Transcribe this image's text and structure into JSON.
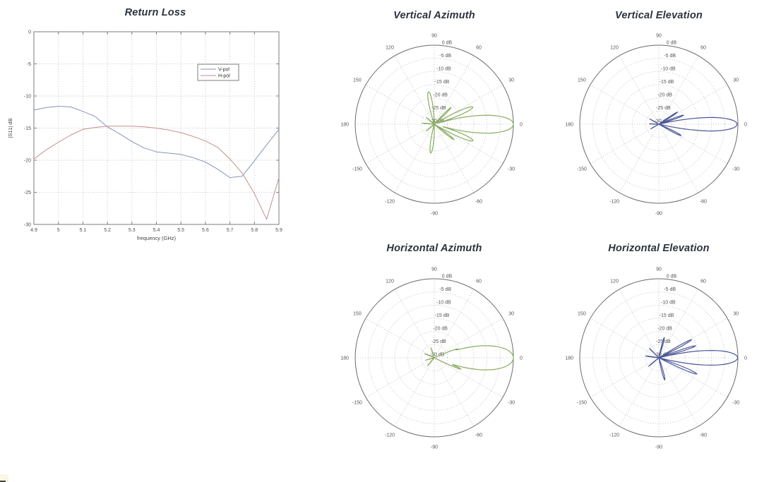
{
  "page": {
    "background": "#ffffff"
  },
  "corner_artifact": {
    "color": "#faf6e2",
    "mark_color": "#45453b"
  },
  "chart_data": [
    {
      "type": "line",
      "id": "return-loss",
      "title": "Return Loss",
      "xlabel": "frequency (GHz)",
      "ylabel": "|S11| dB",
      "xlim": [
        4.9,
        5.9
      ],
      "ylim": [
        -30,
        0
      ],
      "x_ticks": [
        "4.9",
        "5",
        "5.1",
        "5.2",
        "5.3",
        "5.4",
        "5.5",
        "5.6",
        "5.7",
        "5.8",
        "5.9"
      ],
      "y_ticks": [
        "0",
        "-5",
        "-10",
        "-15",
        "-20",
        "-25",
        "-30"
      ],
      "grid": true,
      "legend_position": "upper-right-inside",
      "series": [
        {
          "name": "V-pol",
          "color": "#8593b8",
          "x": [
            4.9,
            4.95,
            5.0,
            5.05,
            5.1,
            5.15,
            5.2,
            5.25,
            5.3,
            5.35,
            5.4,
            5.45,
            5.5,
            5.55,
            5.6,
            5.65,
            5.7,
            5.75,
            5.8,
            5.85,
            5.9
          ],
          "y": [
            -12.2,
            -11.8,
            -11.6,
            -11.7,
            -12.4,
            -13.2,
            -14.8,
            -15.9,
            -17.1,
            -18.1,
            -18.7,
            -18.9,
            -19.1,
            -19.6,
            -20.3,
            -21.4,
            -22.7,
            -22.5,
            -20.1,
            -17.6,
            -15.2
          ]
        },
        {
          "name": "H-pol",
          "color": "#c28f8f",
          "x": [
            4.9,
            4.95,
            5.0,
            5.05,
            5.1,
            5.15,
            5.2,
            5.25,
            5.3,
            5.35,
            5.4,
            5.45,
            5.5,
            5.55,
            5.6,
            5.65,
            5.7,
            5.75,
            5.8,
            5.85,
            5.9
          ],
          "y": [
            -19.8,
            -18.4,
            -17.2,
            -16.1,
            -15.2,
            -14.9,
            -14.7,
            -14.7,
            -14.7,
            -14.8,
            -15.0,
            -15.3,
            -15.7,
            -16.3,
            -17.0,
            -18.0,
            -19.8,
            -22.0,
            -25.2,
            -29.2,
            -22.7
          ]
        }
      ]
    },
    {
      "type": "polar",
      "id": "vertical-azimuth",
      "title": "Vertical Azimuth",
      "color": "#89ac60",
      "rlim": [
        -30,
        0
      ],
      "ring_labels": [
        "0 dB",
        "-5 dB",
        "-10 dB",
        "-15 dB",
        "-20 dB",
        "-25 dB",
        "-30 dB"
      ],
      "angle_ticks": [
        "90",
        "60",
        "30",
        "0",
        "-30",
        "-60",
        "-90",
        "-120",
        "-150",
        "180",
        "150",
        "120"
      ],
      "lobes": [
        {
          "angle": 0,
          "peak_db": 0,
          "halfwidth_deg": 17
        },
        {
          "angle": 24,
          "peak_db": -14.0,
          "halfwidth_deg": 10
        },
        {
          "angle": -23,
          "peak_db": -14.0,
          "halfwidth_deg": 10
        },
        {
          "angle": 45,
          "peak_db": -21.0,
          "halfwidth_deg": 7
        },
        {
          "angle": -38,
          "peak_db": -20.5,
          "halfwidth_deg": 7
        },
        {
          "angle": 100,
          "peak_db": -17.5,
          "halfwidth_deg": 13
        },
        {
          "angle": -97,
          "peak_db": -19.0,
          "halfwidth_deg": 13
        },
        {
          "angle": 140,
          "peak_db": -26.0,
          "halfwidth_deg": 5
        },
        {
          "angle": -140,
          "peak_db": -26.0,
          "halfwidth_deg": 5
        },
        {
          "angle": 175,
          "peak_db": -25.5,
          "halfwidth_deg": 6
        }
      ]
    },
    {
      "type": "polar",
      "id": "vertical-elevation",
      "title": "Vertical Elevation",
      "color": "#4c5799",
      "rlim": [
        -30,
        0
      ],
      "ring_labels": [
        "0 dB",
        "-5 dB",
        "-10 dB",
        "-15 dB",
        "-20 dB",
        "-25 dB",
        "-30 dB"
      ],
      "angle_ticks": [
        "90",
        "60",
        "30",
        "0",
        "-30",
        "-60",
        "-90",
        "-120",
        "-150",
        "180",
        "150",
        "120"
      ],
      "lobes": [
        {
          "angle": 0,
          "peak_db": -0.3,
          "halfwidth_deg": 13
        },
        {
          "angle": 20,
          "peak_db": -20.0,
          "halfwidth_deg": 6
        },
        {
          "angle": 33,
          "peak_db": -21.5,
          "halfwidth_deg": 6
        },
        {
          "angle": -27,
          "peak_db": -20.5,
          "halfwidth_deg": 7
        },
        {
          "angle": 150,
          "peak_db": -26.0,
          "halfwidth_deg": 5
        },
        {
          "angle": -150,
          "peak_db": -26.5,
          "halfwidth_deg": 5
        },
        {
          "angle": 178,
          "peak_db": -26.5,
          "halfwidth_deg": 6
        }
      ]
    },
    {
      "type": "polar",
      "id": "horizontal-azimuth",
      "title": "Horizontal Azimuth",
      "color": "#89ac60",
      "rlim": [
        -30,
        0
      ],
      "ring_labels": [
        "0 dB",
        "-5 dB",
        "-10 dB",
        "-15 dB",
        "-20 dB",
        "-25 dB",
        "-30 dB"
      ],
      "angle_ticks": [
        "90",
        "60",
        "30",
        "0",
        "-30",
        "-60",
        "-90",
        "-120",
        "-150",
        "180",
        "150",
        "120"
      ],
      "lobes": [
        {
          "angle": 0,
          "peak_db": 0,
          "halfwidth_deg": 23
        },
        {
          "angle": 21,
          "peak_db": -20.5,
          "halfwidth_deg": 6
        },
        {
          "angle": -23,
          "peak_db": -19.0,
          "halfwidth_deg": 6
        },
        {
          "angle": 108,
          "peak_db": -26.0,
          "halfwidth_deg": 5
        },
        {
          "angle": 157,
          "peak_db": -26.0,
          "halfwidth_deg": 5
        },
        {
          "angle": -130,
          "peak_db": -26.0,
          "halfwidth_deg": 5
        },
        {
          "angle": -165,
          "peak_db": -26.5,
          "halfwidth_deg": 4
        }
      ]
    },
    {
      "type": "polar",
      "id": "horizontal-elevation",
      "title": "Horizontal Elevation",
      "color": "#4c5799",
      "rlim": [
        -30,
        0
      ],
      "ring_labels": [
        "0 dB",
        "-5 dB",
        "-10 dB",
        "-15 dB",
        "-20 dB",
        "-25 dB",
        "-30 dB"
      ],
      "angle_ticks": [
        "90",
        "60",
        "30",
        "0",
        "-30",
        "-60",
        "-90",
        "-120",
        "-150",
        "180",
        "150",
        "120"
      ],
      "lobes": [
        {
          "angle": 0,
          "peak_db": -0.1,
          "halfwidth_deg": 14
        },
        {
          "angle": 18,
          "peak_db": -15.3,
          "halfwidth_deg": 5
        },
        {
          "angle": 29,
          "peak_db": -15.8,
          "halfwidth_deg": 5
        },
        {
          "angle": 75,
          "peak_db": -22.0,
          "halfwidth_deg": 7
        },
        {
          "angle": -23,
          "peak_db": -14.3,
          "halfwidth_deg": 6
        },
        {
          "angle": -75,
          "peak_db": -21.3,
          "halfwidth_deg": 9
        },
        {
          "angle": 135,
          "peak_db": -25.0,
          "halfwidth_deg": 5
        },
        {
          "angle": -140,
          "peak_db": -25.0,
          "halfwidth_deg": 5
        },
        {
          "angle": 172,
          "peak_db": -25.0,
          "halfwidth_deg": 6
        }
      ]
    }
  ]
}
